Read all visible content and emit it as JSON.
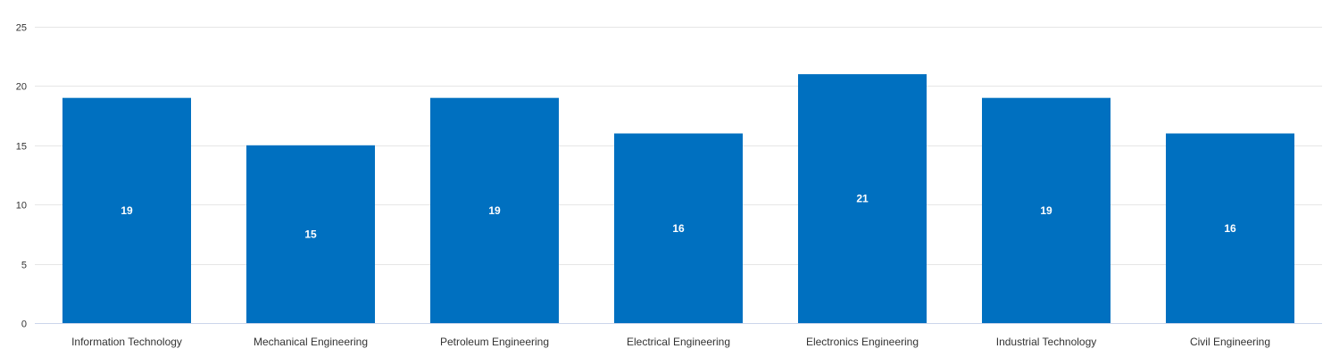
{
  "chart_data": {
    "type": "bar",
    "categories": [
      "Information Technology",
      "Mechanical Engineering",
      "Petroleum Engineering",
      "Electrical Engineering",
      "Electronics Engineering",
      "Industrial Technology",
      "Civil Engineering"
    ],
    "values": [
      19,
      15,
      19,
      16,
      21,
      19,
      16
    ],
    "ylim": [
      0,
      25
    ],
    "yticks": [
      0,
      5,
      10,
      15,
      20,
      25
    ],
    "grid": true,
    "data_labels": true,
    "bar_color": "#0070c0"
  }
}
